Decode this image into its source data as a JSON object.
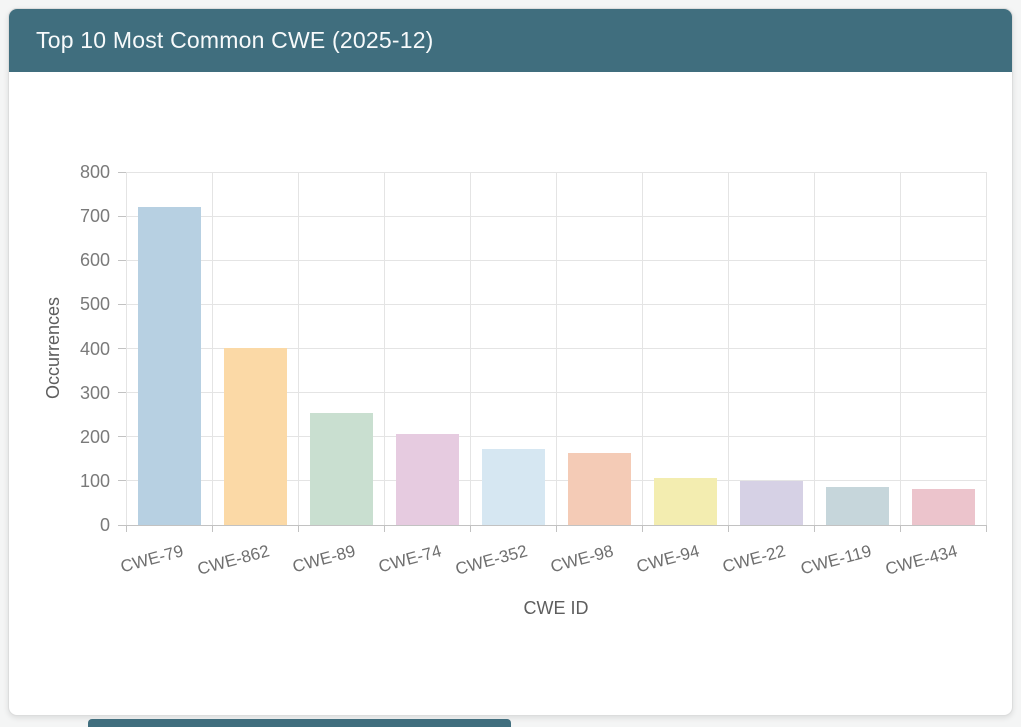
{
  "panel": {
    "title": "Top 10 Most Common CWE (2025-12)"
  },
  "chart_data": {
    "type": "bar",
    "title": "Top 10 Most Common CWE (2025-12)",
    "xlabel": "CWE ID",
    "ylabel": "Occurrences",
    "categories": [
      "CWE-79",
      "CWE-862",
      "CWE-89",
      "CWE-74",
      "CWE-352",
      "CWE-98",
      "CWE-94",
      "CWE-22",
      "CWE-119",
      "CWE-434"
    ],
    "values": [
      721,
      401,
      254,
      206,
      172,
      164,
      107,
      99,
      86,
      82
    ],
    "bar_colors": [
      "#b7d0e2",
      "#fbd9a6",
      "#c9dfd0",
      "#e6cbe0",
      "#d6e7f2",
      "#f4cbb6",
      "#f3edb0",
      "#d6d1e5",
      "#c6d6db",
      "#ecc4cc"
    ],
    "ylim": [
      0,
      800
    ],
    "ytick_step": 100,
    "grid": true,
    "legend_position": "none"
  },
  "colors": {
    "header_bg": "#406e7e",
    "header_text": "#f7fafb",
    "card_bg": "#ffffff",
    "page_bg": "#f4f5f5",
    "grid_line": "#e4e4e4",
    "axis_line": "#c2c2c2",
    "tick_text": "#7a7a7a",
    "axis_label_text": "#5e5e5e",
    "scrollbar_thumb": "#406e7e"
  }
}
